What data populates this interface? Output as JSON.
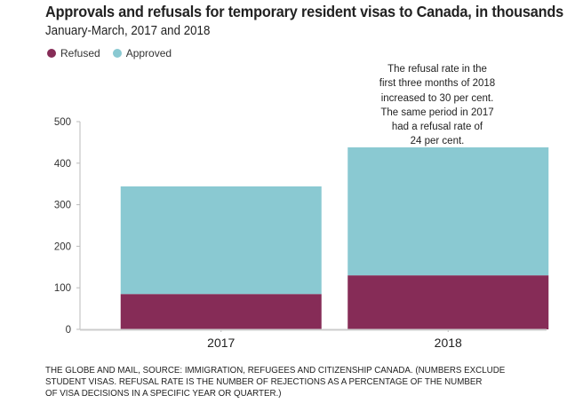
{
  "chart_data": {
    "type": "bar",
    "stacked": true,
    "title": "Approvals and refusals for temporary resident visas to Canada, in thousands",
    "subtitle": "January-March, 2017 and 2018",
    "xlabel": "",
    "ylabel": "",
    "ylim": [
      0,
      500
    ],
    "yticks": [
      0,
      100,
      200,
      300,
      400,
      500
    ],
    "grid": false,
    "legend_position": "top-left",
    "categories": [
      "2017",
      "2018"
    ],
    "series": [
      {
        "name": "Refused",
        "color": "#862c57",
        "values": [
          85,
          130
        ]
      },
      {
        "name": "Approved",
        "color": "#8ac9d2",
        "values": [
          259,
          308
        ]
      }
    ],
    "annotations": [
      {
        "target": "2018",
        "lines": [
          "The refusal rate in the",
          "first three months of 2018",
          "increased to 30 per cent.",
          "The same period in 2017",
          "had a refusal rate of",
          "24 per cent."
        ]
      }
    ],
    "footnote": [
      "THE GLOBE AND MAIL, SOURCE: IMMIGRATION, REFUGEES AND CITIZENSHIP CANADA. (NUMBERS EXCLUDE",
      "STUDENT VISAS. REFUSAL RATE IS THE NUMBER OF REJECTIONS AS A PERCENTAGE OF THE NUMBER",
      "OF VISA DECISIONS IN A SPECIFIC YEAR OR QUARTER.)"
    ]
  }
}
